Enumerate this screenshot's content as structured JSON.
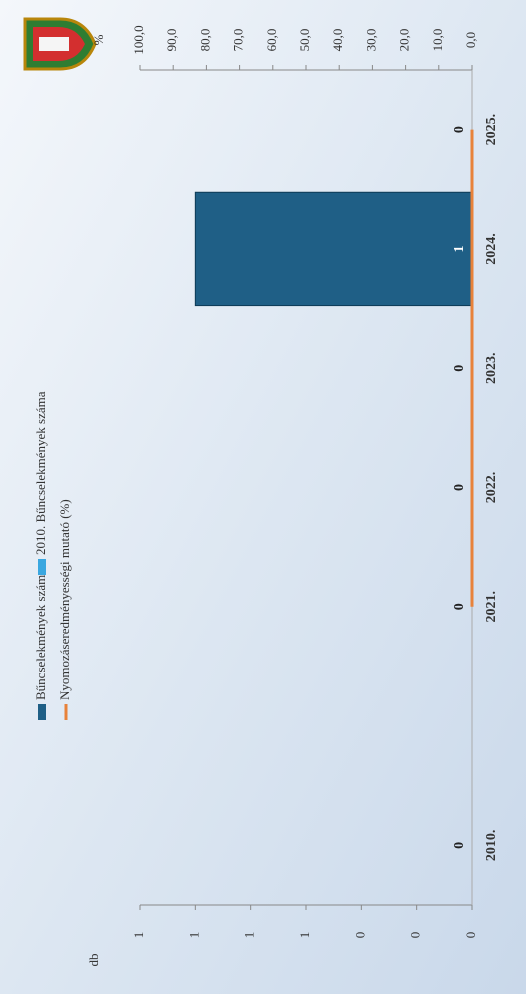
{
  "chart_data": {
    "type": "bar",
    "categories": [
      "2010.",
      null,
      "2021.",
      "2022.",
      "2023.",
      "2024.",
      "2025."
    ],
    "series": [
      {
        "name": "Bűncselekmények száma",
        "color": "#1f5f86",
        "values": [
          null,
          null,
          0,
          0,
          0,
          1,
          0
        ]
      },
      {
        "name": "Nyomozáseredményességi mutató (%)",
        "type": "line",
        "axis": "y2",
        "color": "#e8823a",
        "values": [
          null,
          null,
          0,
          0,
          0,
          0,
          0
        ]
      },
      {
        "name": "2010. Bűncselekmények száma",
        "color": "#3aa7e0",
        "values": [
          0,
          null,
          null,
          null,
          null,
          null,
          null
        ]
      }
    ],
    "y_label": "db",
    "ylim": [
      0,
      1.2
    ],
    "yticks": [
      {
        "value": 0,
        "label": "0"
      },
      {
        "value": 0.2,
        "label": "0"
      },
      {
        "value": 0.4,
        "label": "0"
      },
      {
        "value": 0.6,
        "label": "1"
      },
      {
        "value": 0.8,
        "label": "1"
      },
      {
        "value": 1,
        "label": "1"
      },
      {
        "value": 1.2,
        "label": "1"
      }
    ],
    "y2_label": "%",
    "y2lim": [
      0,
      100
    ],
    "y2ticks": [
      {
        "value": 0,
        "label": "0,0"
      },
      {
        "value": 10,
        "label": "10,0"
      },
      {
        "value": 20,
        "label": "20,0"
      },
      {
        "value": 30,
        "label": "30,0"
      },
      {
        "value": 40,
        "label": "40,0"
      },
      {
        "value": 50,
        "label": "50,0"
      },
      {
        "value": 60,
        "label": "60,0"
      },
      {
        "value": 70,
        "label": "70,0"
      },
      {
        "value": 80,
        "label": "80,0"
      },
      {
        "value": 90,
        "label": "90,0"
      },
      {
        "value": 100,
        "label": "100,0"
      }
    ],
    "grid": false,
    "legend": "top"
  }
}
